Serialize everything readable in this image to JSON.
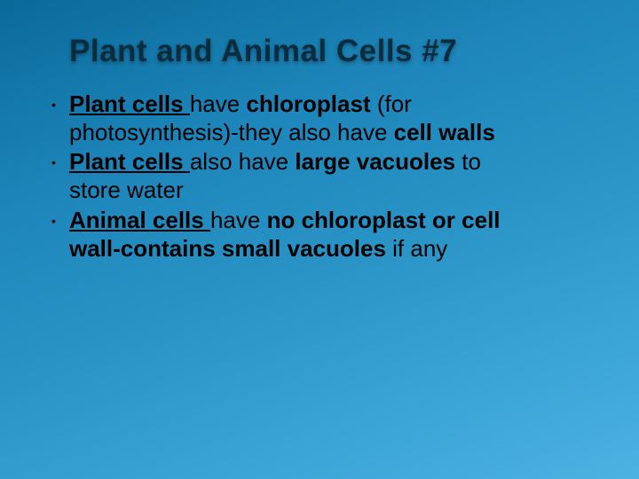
{
  "slide": {
    "background_gradient": [
      "#0a6a9a",
      "#1c84b8",
      "#2a94c7",
      "#3aa4d6",
      "#4cb2e2"
    ],
    "title": {
      "text": "Plant and Animal Cells #7",
      "color": "#0b2c3f",
      "font_size_pt": 35,
      "font_weight": 900
    },
    "bullets": [
      {
        "seg1": "Plant cells ",
        "seg2": "have ",
        "seg3": "chloroplast ",
        "seg4": "(for photosynthesis)-they also have ",
        "seg5": "cell walls"
      },
      {
        "seg1": "Plant cells ",
        "seg2": "also have ",
        "seg3": "large vacuoles ",
        "seg4": "to store water"
      },
      {
        "seg1": "Animal cells ",
        "seg2": "have ",
        "seg3": "no chloroplast or cell wall-contains small vacuoles ",
        "seg4": "if any"
      }
    ],
    "body_font_size_pt": 26,
    "body_color": "#000000"
  }
}
